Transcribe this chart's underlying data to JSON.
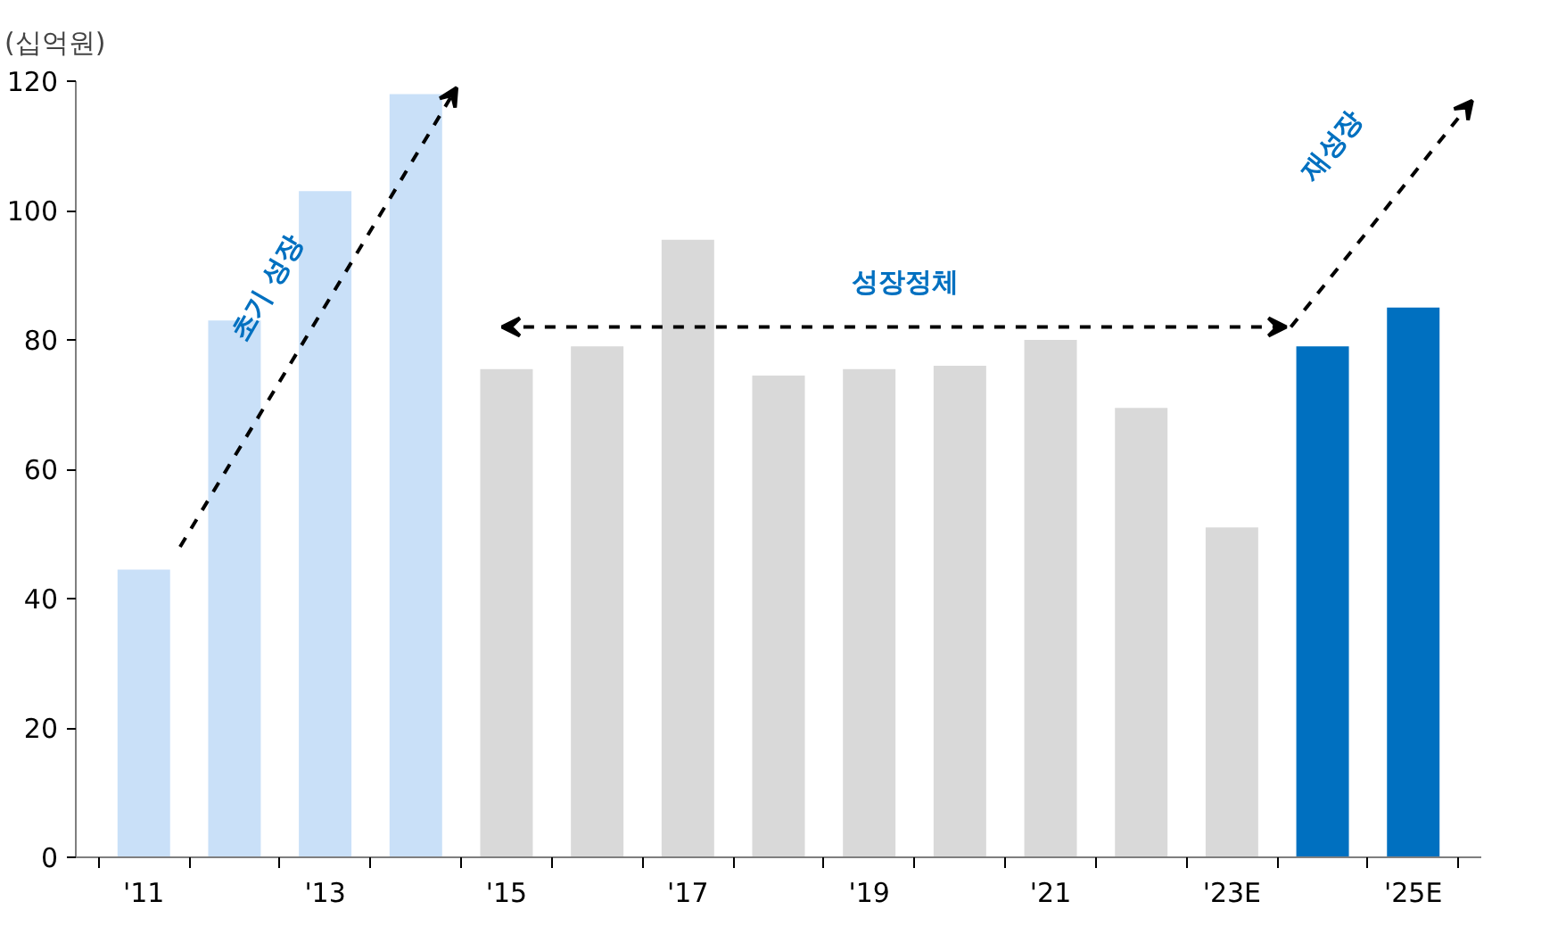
{
  "chart_data": {
    "type": "bar",
    "ylabel": "(십억원)",
    "categories": [
      "'11",
      null,
      "'13",
      null,
      "'15",
      null,
      "'17",
      null,
      "'19",
      null,
      "'21",
      null,
      "'23E",
      null,
      "'25E"
    ],
    "values": [
      44.5,
      83,
      103,
      118,
      75.5,
      79,
      95.5,
      74.5,
      75.5,
      76,
      80,
      69.5,
      51,
      79,
      85
    ],
    "colors": [
      "#c9e0f8",
      "#c9e0f8",
      "#c9e0f8",
      "#c9e0f8",
      "#d9d9d9",
      "#d9d9d9",
      "#d9d9d9",
      "#d9d9d9",
      "#d9d9d9",
      "#d9d9d9",
      "#d9d9d9",
      "#d9d9d9",
      "#d9d9d9",
      "#0070c0",
      "#0070c0"
    ],
    "ylim": [
      0,
      120
    ],
    "yticks": [
      0,
      20,
      40,
      60,
      80,
      100,
      120
    ],
    "grid": false,
    "annotations": [
      "초기 성장",
      "성장정체",
      "재성장"
    ]
  }
}
